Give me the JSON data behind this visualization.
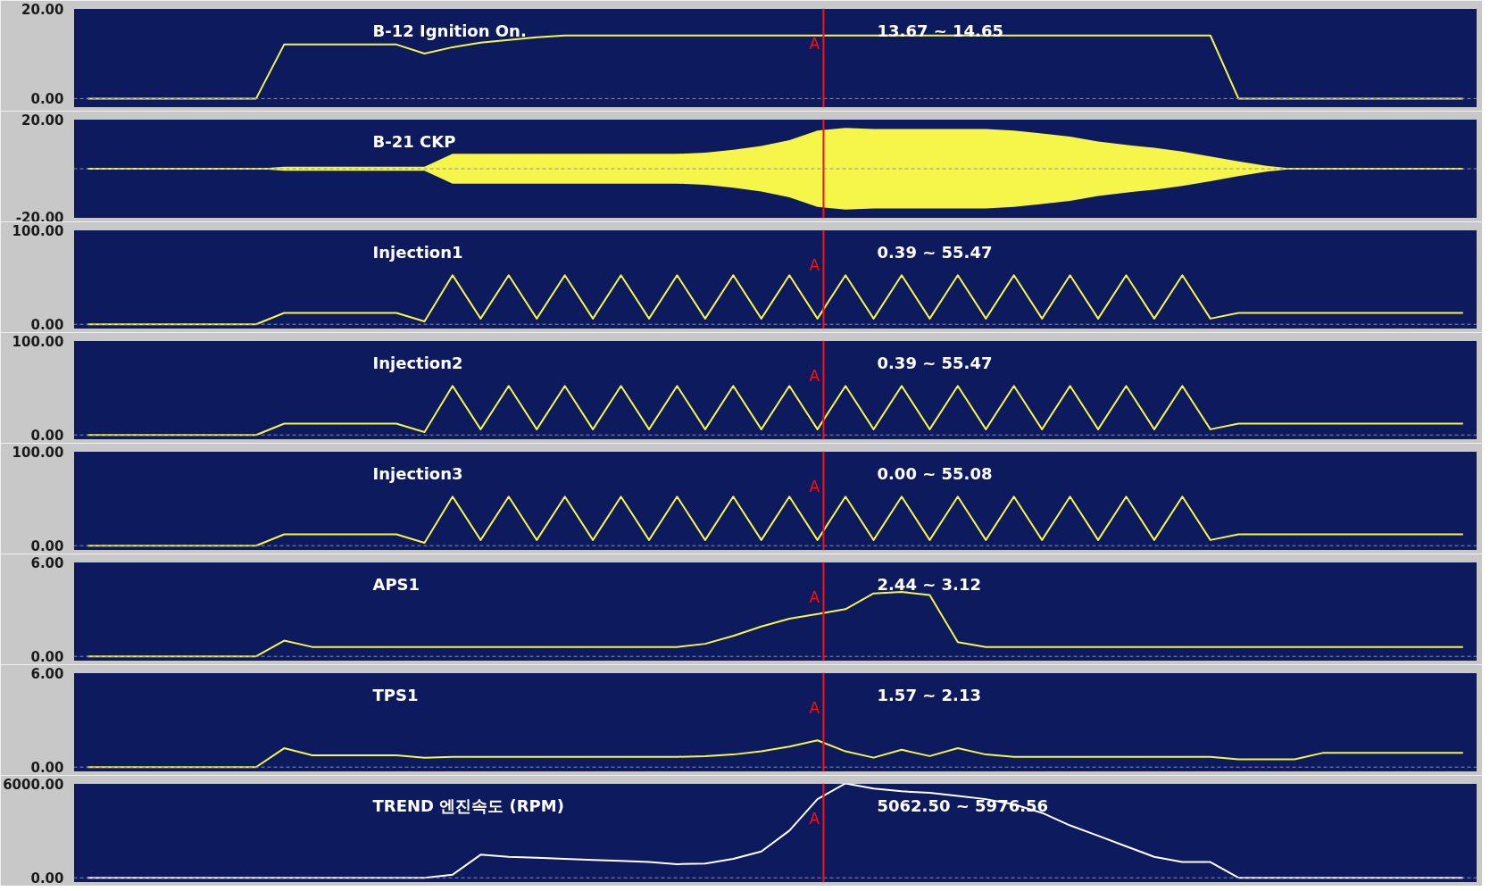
{
  "chart_data": [
    {
      "type": "line",
      "title": "B-12  Ignition On.",
      "annotations": [
        "A",
        "13.67 ~ 14.65"
      ],
      "categories": [
        null,
        null,
        null,
        null,
        null,
        null,
        null,
        null,
        null,
        null,
        null,
        null,
        null,
        null,
        null,
        null,
        null,
        null,
        null,
        null,
        null,
        null,
        null,
        null,
        null,
        null,
        null,
        null,
        null,
        null,
        null,
        null,
        null,
        null,
        null,
        null,
        null,
        null,
        null,
        null,
        null,
        null,
        null,
        null,
        null,
        null,
        null,
        null,
        null,
        null
      ],
      "series": [
        {
          "color": "#f5f54a",
          "values": [
            0,
            0,
            0,
            0,
            0,
            0,
            0,
            12,
            12,
            12,
            12,
            12,
            10,
            11.4,
            12.4,
            13,
            13.6,
            14,
            14,
            14,
            14,
            14,
            14,
            14,
            14,
            14,
            14,
            14,
            14,
            14,
            14,
            14,
            14,
            14,
            14,
            14,
            14,
            14,
            14,
            14,
            14,
            0,
            0,
            0,
            0,
            0,
            0,
            0,
            0,
            0
          ]
        }
      ],
      "ylim": [
        -2,
        20
      ],
      "yticks": [
        {
          "value": 0,
          "label": "0.00"
        },
        {
          "value": 20,
          "label": "20.00"
        }
      ],
      "tick_labels": "y",
      "grid": false,
      "marker": "none",
      "line_style": "solid",
      "ref_lines": [
        {
          "axis": "y",
          "value": 0,
          "color": "#8a8fa8",
          "line_style": "dashed"
        }
      ]
    },
    {
      "type": "line",
      "title": "B-21  CKP",
      "categories": [
        null,
        null,
        null,
        null,
        null,
        null,
        null,
        null,
        null,
        null,
        null,
        null,
        null,
        null,
        null,
        null,
        null,
        null,
        null,
        null,
        null,
        null,
        null,
        null,
        null,
        null,
        null,
        null,
        null,
        null,
        null,
        null,
        null,
        null,
        null,
        null,
        null,
        null,
        null,
        null,
        null,
        null,
        null,
        null,
        null,
        null,
        null,
        null,
        null,
        null
      ],
      "series": [
        {
          "color": "#f5f54a",
          "values": [
            0,
            0,
            0,
            0,
            0,
            0,
            0,
            0,
            0,
            0,
            0,
            0,
            0,
            0,
            0,
            0,
            0,
            0,
            0,
            0,
            0,
            0,
            0,
            0,
            0,
            0,
            0,
            0,
            0,
            0,
            0,
            0,
            0,
            0,
            0,
            0,
            0,
            0,
            0,
            0,
            0,
            0,
            0,
            0,
            0,
            0,
            0,
            0,
            0,
            0
          ],
          "upper": [
            0,
            0,
            0,
            0,
            0,
            0,
            0,
            0.8,
            0.8,
            0.8,
            0.8,
            0.8,
            0.8,
            6,
            6,
            6,
            6,
            6,
            6,
            6,
            6,
            6,
            6.5,
            7.7,
            9.2,
            11.5,
            15.4,
            16.5,
            16,
            16,
            16,
            16,
            16,
            15.4,
            14.2,
            13,
            11,
            9.6,
            8.5,
            6.9,
            5,
            3,
            1.2,
            0,
            0,
            0,
            0,
            0,
            0,
            0
          ],
          "lower": [
            0,
            0,
            0,
            0,
            0,
            0,
            0,
            -0.8,
            -0.8,
            -0.8,
            -0.8,
            -0.8,
            -0.8,
            -6,
            -6,
            -6,
            -6,
            -6,
            -6,
            -6,
            -6,
            -6,
            -6.5,
            -7.7,
            -9.2,
            -11.5,
            -15.4,
            -16.5,
            -16,
            -16,
            -16,
            -16,
            -16,
            -15.4,
            -14.2,
            -13,
            -11,
            -9.6,
            -8.5,
            -6.9,
            -5,
            -3,
            -1.2,
            0,
            0,
            0,
            0,
            0,
            0,
            0
          ]
        }
      ],
      "ylim": [
        -20,
        20
      ],
      "yticks": [
        {
          "value": -20,
          "label": "-20.00"
        },
        {
          "value": 20,
          "label": "20.00"
        }
      ],
      "tick_labels": "y",
      "grid": false,
      "marker": "none",
      "line_style": "solid",
      "ref_lines": [
        {
          "axis": "y",
          "value": 0,
          "color": "#8a8fa8",
          "line_style": "dashed"
        }
      ]
    },
    {
      "type": "line",
      "title": "Injection1",
      "annotations": [
        "A",
        "0.39 ~ 55.47"
      ],
      "categories": [
        null,
        null,
        null,
        null,
        null,
        null,
        null,
        null,
        null,
        null,
        null,
        null,
        null,
        null,
        null,
        null,
        null,
        null,
        null,
        null,
        null,
        null,
        null,
        null,
        null,
        null,
        null,
        null,
        null,
        null,
        null,
        null,
        null,
        null,
        null,
        null,
        null,
        null,
        null,
        null,
        null,
        null,
        null,
        null,
        null,
        null,
        null,
        null,
        null,
        null
      ],
      "series": [
        {
          "color": "#f5f54a",
          "values": [
            0,
            0,
            0,
            0,
            0,
            0,
            0,
            12,
            12,
            12,
            12,
            12,
            3,
            52,
            6,
            52,
            6,
            52,
            6,
            52,
            6,
            52,
            6,
            52,
            6,
            52,
            6,
            52,
            6,
            52,
            6,
            52,
            6,
            52,
            6,
            52,
            6,
            52,
            6,
            52,
            6,
            12,
            12,
            12,
            12,
            12,
            12,
            12,
            12,
            12
          ]
        }
      ],
      "ylim": [
        -5,
        100
      ],
      "yticks": [
        {
          "value": 0,
          "label": "0.00"
        },
        {
          "value": 100,
          "label": "100.00"
        }
      ],
      "tick_labels": "y",
      "grid": false,
      "marker": "none",
      "line_style": "solid",
      "ref_lines": [
        {
          "axis": "y",
          "value": 0,
          "color": "#8a8fa8",
          "line_style": "dashed"
        }
      ]
    },
    {
      "type": "line",
      "title": "Injection2",
      "annotations": [
        "A",
        "0.39 ~ 55.47"
      ],
      "categories": [
        null,
        null,
        null,
        null,
        null,
        null,
        null,
        null,
        null,
        null,
        null,
        null,
        null,
        null,
        null,
        null,
        null,
        null,
        null,
        null,
        null,
        null,
        null,
        null,
        null,
        null,
        null,
        null,
        null,
        null,
        null,
        null,
        null,
        null,
        null,
        null,
        null,
        null,
        null,
        null,
        null,
        null,
        null,
        null,
        null,
        null,
        null,
        null,
        null,
        null
      ],
      "series": [
        {
          "color": "#f5f54a",
          "values": [
            0,
            0,
            0,
            0,
            0,
            0,
            0,
            12,
            12,
            12,
            12,
            12,
            3,
            52,
            6,
            52,
            6,
            52,
            6,
            52,
            6,
            52,
            6,
            52,
            6,
            52,
            6,
            52,
            6,
            52,
            6,
            52,
            6,
            52,
            6,
            52,
            6,
            52,
            6,
            52,
            6,
            12,
            12,
            12,
            12,
            12,
            12,
            12,
            12,
            12
          ]
        }
      ],
      "ylim": [
        -5,
        100
      ],
      "yticks": [
        {
          "value": 0,
          "label": "0.00"
        },
        {
          "value": 100,
          "label": "100.00"
        }
      ],
      "tick_labels": "y",
      "grid": false,
      "marker": "none",
      "line_style": "solid",
      "ref_lines": [
        {
          "axis": "y",
          "value": 0,
          "color": "#8a8fa8",
          "line_style": "dashed"
        }
      ]
    },
    {
      "type": "line",
      "title": "Injection3",
      "annotations": [
        "A",
        "0.00 ~ 55.08"
      ],
      "categories": [
        null,
        null,
        null,
        null,
        null,
        null,
        null,
        null,
        null,
        null,
        null,
        null,
        null,
        null,
        null,
        null,
        null,
        null,
        null,
        null,
        null,
        null,
        null,
        null,
        null,
        null,
        null,
        null,
        null,
        null,
        null,
        null,
        null,
        null,
        null,
        null,
        null,
        null,
        null,
        null,
        null,
        null,
        null,
        null,
        null,
        null,
        null,
        null,
        null,
        null
      ],
      "series": [
        {
          "color": "#f5f54a",
          "values": [
            0,
            0,
            0,
            0,
            0,
            0,
            0,
            12,
            12,
            12,
            12,
            12,
            3,
            52,
            6,
            52,
            6,
            52,
            6,
            52,
            6,
            52,
            6,
            52,
            6,
            52,
            6,
            52,
            6,
            52,
            6,
            52,
            6,
            52,
            6,
            52,
            6,
            52,
            6,
            52,
            6,
            12,
            12,
            12,
            12,
            12,
            12,
            12,
            12,
            12
          ]
        }
      ],
      "ylim": [
        -5,
        100
      ],
      "yticks": [
        {
          "value": 0,
          "label": "0.00"
        },
        {
          "value": 100,
          "label": "100.00"
        }
      ],
      "tick_labels": "y",
      "grid": false,
      "marker": "none",
      "line_style": "solid",
      "ref_lines": [
        {
          "axis": "y",
          "value": 0,
          "color": "#8a8fa8",
          "line_style": "dashed"
        }
      ]
    },
    {
      "type": "line",
      "title": "APS1",
      "annotations": [
        "A",
        "2.44 ~ 3.12"
      ],
      "categories": [
        null,
        null,
        null,
        null,
        null,
        null,
        null,
        null,
        null,
        null,
        null,
        null,
        null,
        null,
        null,
        null,
        null,
        null,
        null,
        null,
        null,
        null,
        null,
        null,
        null,
        null,
        null,
        null,
        null,
        null,
        null,
        null,
        null,
        null,
        null,
        null,
        null,
        null,
        null,
        null,
        null,
        null,
        null,
        null,
        null,
        null,
        null,
        null,
        null,
        null
      ],
      "series": [
        {
          "color": "#f5f54a",
          "values": [
            0,
            0,
            0,
            0,
            0,
            0,
            0,
            1.0,
            0.6,
            0.6,
            0.6,
            0.6,
            0.6,
            0.6,
            0.6,
            0.6,
            0.6,
            0.6,
            0.6,
            0.6,
            0.6,
            0.6,
            0.8,
            1.3,
            1.9,
            2.4,
            2.7,
            3.0,
            4.0,
            4.1,
            3.9,
            0.9,
            0.6,
            0.6,
            0.6,
            0.6,
            0.6,
            0.6,
            0.6,
            0.6,
            0.6,
            0.6,
            0.6,
            0.6,
            0.6,
            0.6,
            0.6,
            0.6,
            0.6,
            0.6
          ]
        }
      ],
      "ylim": [
        -0.3,
        6
      ],
      "yticks": [
        {
          "value": 0,
          "label": "0.00"
        },
        {
          "value": 6,
          "label": "6.00"
        }
      ],
      "tick_labels": "y",
      "grid": false,
      "marker": "none",
      "line_style": "solid",
      "ref_lines": [
        {
          "axis": "y",
          "value": 0,
          "color": "#8a8fa8",
          "line_style": "dashed"
        }
      ]
    },
    {
      "type": "line",
      "title": "TPS1",
      "annotations": [
        "A",
        "1.57 ~ 2.13"
      ],
      "categories": [
        null,
        null,
        null,
        null,
        null,
        null,
        null,
        null,
        null,
        null,
        null,
        null,
        null,
        null,
        null,
        null,
        null,
        null,
        null,
        null,
        null,
        null,
        null,
        null,
        null,
        null,
        null,
        null,
        null,
        null,
        null,
        null,
        null,
        null,
        null,
        null,
        null,
        null,
        null,
        null,
        null,
        null,
        null,
        null,
        null,
        null,
        null,
        null,
        null,
        null
      ],
      "series": [
        {
          "color": "#f5f54a",
          "values": [
            0,
            0,
            0,
            0,
            0,
            0,
            0,
            1.2,
            0.75,
            0.75,
            0.75,
            0.75,
            0.6,
            0.65,
            0.65,
            0.65,
            0.65,
            0.65,
            0.65,
            0.65,
            0.65,
            0.65,
            0.7,
            0.8,
            1.0,
            1.3,
            1.7,
            1.0,
            0.6,
            1.1,
            0.7,
            1.2,
            0.8,
            0.65,
            0.65,
            0.65,
            0.65,
            0.65,
            0.65,
            0.65,
            0.65,
            0.5,
            0.5,
            0.5,
            0.9,
            0.9,
            0.9,
            0.9,
            0.9,
            0.9
          ]
        }
      ],
      "ylim": [
        -0.3,
        6
      ],
      "yticks": [
        {
          "value": 0,
          "label": "0.00"
        },
        {
          "value": 6,
          "label": "6.00"
        }
      ],
      "tick_labels": "y",
      "grid": false,
      "marker": "none",
      "line_style": "solid",
      "ref_lines": [
        {
          "axis": "y",
          "value": 0,
          "color": "#8a8fa8",
          "line_style": "dashed"
        }
      ]
    },
    {
      "type": "line",
      "title": "TREND  엔진속도 (RPM)",
      "annotations": [
        "A",
        "5062.50 ~ 5976.56"
      ],
      "categories": [
        null,
        null,
        null,
        null,
        null,
        null,
        null,
        null,
        null,
        null,
        null,
        null,
        null,
        null,
        null,
        null,
        null,
        null,
        null,
        null,
        null,
        null,
        null,
        null,
        null,
        null,
        null,
        null,
        null,
        null,
        null,
        null,
        null,
        null,
        null,
        null,
        null,
        null,
        null,
        null,
        null,
        null,
        null,
        null,
        null,
        null,
        null,
        null,
        null,
        null
      ],
      "series": [
        {
          "color": "#ffffff",
          "values": [
            0,
            0,
            0,
            0,
            0,
            0,
            0,
            0,
            0,
            0,
            0,
            0,
            0,
            200,
            1470,
            1330,
            1270,
            1200,
            1130,
            1070,
            1000,
            870,
            900,
            1200,
            1670,
            3000,
            5000,
            6000,
            5670,
            5500,
            5400,
            5200,
            5000,
            4670,
            4130,
            3330,
            2670,
            2000,
            1330,
            1000,
            1000,
            0,
            0,
            0,
            0,
            0,
            0,
            0,
            0,
            0
          ]
        }
      ],
      "ylim": [
        -300,
        6000
      ],
      "yticks": [
        {
          "value": 0,
          "label": "0.00"
        },
        {
          "value": 6000,
          "label": "6000.00"
        }
      ],
      "tick_labels": "y",
      "grid": false,
      "marker": "none",
      "line_style": "solid",
      "ref_lines": [
        {
          "axis": "y",
          "value": 0,
          "color": "#8a8fa8",
          "line_style": "dashed"
        }
      ]
    }
  ]
}
